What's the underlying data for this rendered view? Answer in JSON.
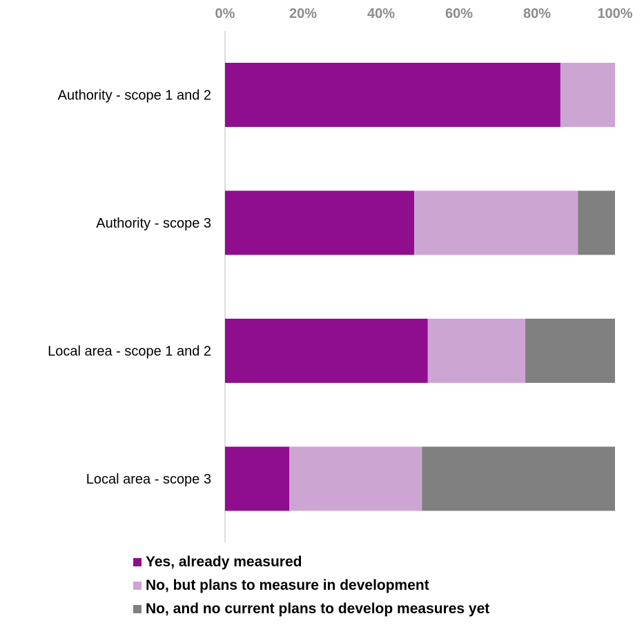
{
  "chart_data": {
    "type": "bar",
    "orientation": "horizontal",
    "stacked": true,
    "x_axis_position": "top",
    "xlim": [
      0,
      100
    ],
    "x_ticks": [
      "0%",
      "20%",
      "40%",
      "60%",
      "80%",
      "100%"
    ],
    "categories": [
      "Authority - scope 1 and 2",
      "Authority - scope 3",
      "Local area - scope 1 and 2",
      "Local area - scope 3"
    ],
    "series": [
      {
        "name": "Yes, already measured",
        "color": "#8e0e8e",
        "values": [
          86,
          48.5,
          52,
          16.5
        ]
      },
      {
        "name": "No, but plans to measure in development",
        "color": "#cca5d3",
        "values": [
          14,
          42,
          25,
          34
        ]
      },
      {
        "name": "No, and no current plans to develop measures yet",
        "color": "#808080",
        "values": [
          0,
          9.5,
          23,
          49.5
        ]
      }
    ],
    "legend_position": "bottom",
    "grid": false
  }
}
